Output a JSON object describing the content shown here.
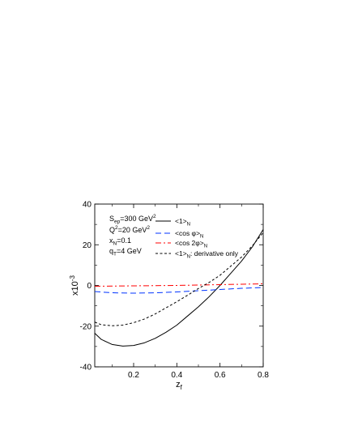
{
  "chart_data": {
    "type": "line",
    "xlabel": "z_f",
    "ylabel": "x10^-3",
    "xlim": [
      0.02,
      0.8
    ],
    "ylim": [
      -40,
      40
    ],
    "x_ticks": [
      0.2,
      0.4,
      0.6,
      0.8
    ],
    "x_tick_labels": [
      "0.2",
      "0.4",
      "0.6",
      "0.8"
    ],
    "y_ticks": [
      -40,
      -20,
      0,
      20,
      40
    ],
    "y_tick_labels": [
      "-40",
      "-20",
      "0",
      "20",
      "40"
    ],
    "grid": false,
    "legend_position": "top-right",
    "annotations": [
      {
        "base": "S",
        "sub": "ep",
        "rest": "=300 GeV",
        "sup": "2"
      },
      {
        "base": "Q",
        "sup": "2",
        "rest": "=20 GeV",
        "sup2": "2"
      },
      {
        "base": "x",
        "sub": "N",
        "rest": "=0.1"
      },
      {
        "base": "q",
        "sub": "T",
        "rest": "=4 GeV"
      }
    ],
    "series": [
      {
        "name": "<1>_N",
        "legend_main": "<1>",
        "legend_sub": "N",
        "legend_tail": "",
        "color": "#000000",
        "dash": "solid",
        "x": [
          0.02,
          0.05,
          0.1,
          0.15,
          0.2,
          0.25,
          0.3,
          0.35,
          0.4,
          0.45,
          0.5,
          0.55,
          0.6,
          0.65,
          0.7,
          0.75,
          0.8
        ],
        "values": [
          -23.5,
          -26.5,
          -29,
          -29.8,
          -29.5,
          -28.2,
          -26,
          -23,
          -19.5,
          -15,
          -10.5,
          -5.5,
          0,
          6,
          12,
          19,
          27.5
        ]
      },
      {
        "name": "<cos φ>_N",
        "legend_main": "<cos φ>",
        "legend_sub": "N",
        "legend_tail": "",
        "color": "#0033ff",
        "dash": "long",
        "x": [
          0.02,
          0.1,
          0.2,
          0.3,
          0.4,
          0.5,
          0.6,
          0.7,
          0.8
        ],
        "values": [
          -3,
          -3.6,
          -3.8,
          -3.6,
          -3.2,
          -2.6,
          -2,
          -1.4,
          -1
        ]
      },
      {
        "name": "<cos 2φ>_N",
        "legend_main": "<cos 2φ>",
        "legend_sub": "N",
        "legend_tail": "",
        "color": "#ff0000",
        "dash": "dashdot",
        "x": [
          0.02,
          0.1,
          0.2,
          0.3,
          0.4,
          0.5,
          0.6,
          0.7,
          0.8
        ],
        "values": [
          -0.4,
          -0.3,
          -0.2,
          -0.1,
          0,
          0.2,
          0.4,
          0.6,
          0.8
        ]
      },
      {
        "name": "<1>_N: derivative only",
        "legend_main": "<1>",
        "legend_sub": "N",
        "legend_tail": ": derivative only",
        "color": "#000000",
        "dash": "short",
        "x": [
          0.02,
          0.05,
          0.1,
          0.15,
          0.2,
          0.25,
          0.3,
          0.35,
          0.4,
          0.45,
          0.5,
          0.55,
          0.6,
          0.65,
          0.7,
          0.75,
          0.8
        ],
        "values": [
          -18,
          -19.3,
          -19.8,
          -19.5,
          -18.3,
          -16.5,
          -14,
          -11,
          -8,
          -4.8,
          -1.5,
          1.5,
          5,
          9.5,
          14,
          19.5,
          26
        ]
      }
    ]
  }
}
